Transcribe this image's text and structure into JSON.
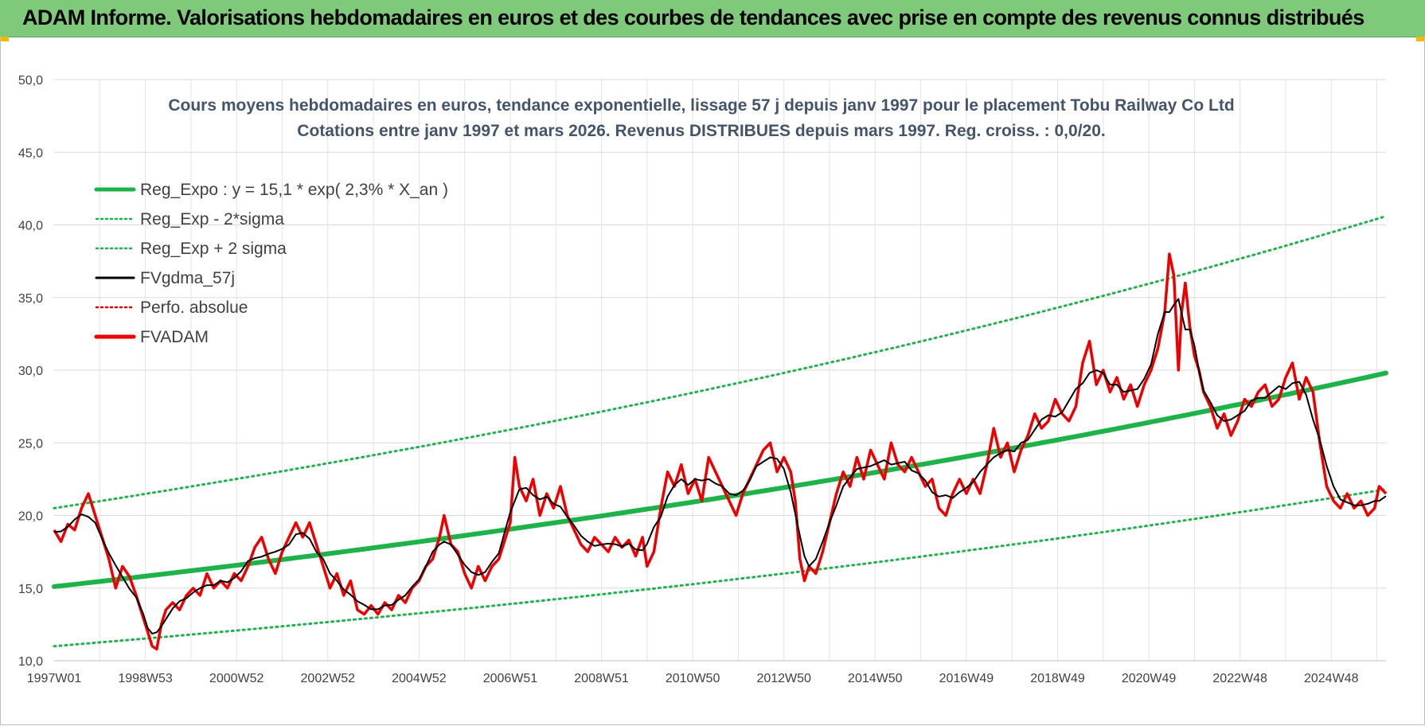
{
  "banner": {
    "title": "ADAM Informe. Valorisations hebdomadaires en euros et des courbes de tendances avec prise en compte des revenus connus distribués"
  },
  "chart_data": {
    "type": "line",
    "title_line1": "Cours moyens hebdomadaires en euros, tendance exponentielle, lissage 57 j depuis janv 1997  pour le  placement Tobu Railway Co Ltd",
    "title_line2": "Cotations entre janv 1997 et mars 2026. Revenus DISTRIBUES depuis mars 1997.  Reg. croiss. : 0,0/20.",
    "ylim": [
      10,
      50
    ],
    "xlim": [
      1997.0,
      2026.2
    ],
    "y_ticks": [
      "10,0",
      "15,0",
      "20,0",
      "25,0",
      "30,0",
      "35,0",
      "40,0",
      "45,0",
      "50,0"
    ],
    "x_tick_labels": [
      "1997W01",
      "1998W53",
      "2000W52",
      "2002W52",
      "2004W52",
      "2006W51",
      "2008W51",
      "2010W50",
      "2012W50",
      "2014W50",
      "2016W49",
      "2018W49",
      "2020W49",
      "2022W48",
      "2024W48"
    ],
    "x_tick_years": [
      1997.0,
      1999.0,
      2001.0,
      2003.0,
      2005.0,
      2007.0,
      2009.0,
      2011.0,
      2013.0,
      2015.0,
      2017.0,
      2019.0,
      2021.0,
      2023.0,
      2025.0
    ],
    "legend": [
      {
        "name": "Reg_Expo : y = 15,1 * exp( 2,3% *  X_an )",
        "color": "#1db34a",
        "style": "solid-thick"
      },
      {
        "name": "Reg_Exp - 2*sigma",
        "color": "#1db34a",
        "style": "dotted"
      },
      {
        "name": "Reg_Exp + 2 sigma",
        "color": "#1db34a",
        "style": "dotted"
      },
      {
        "name": "FVgdma_57j",
        "color": "#000000",
        "style": "solid"
      },
      {
        "name": "Perfo. absolue",
        "color": "#e00000",
        "style": "dotted"
      },
      {
        "name": "FVADAM",
        "color": "#ee0000",
        "style": "solid-thick"
      }
    ],
    "series": [
      {
        "name": "Reg_Expo",
        "points": [
          [
            1997.0,
            15.1
          ],
          [
            2026.2,
            29.8
          ]
        ]
      },
      {
        "name": "Reg_Exp - 2*sigma",
        "points": [
          [
            1997.0,
            11.0
          ],
          [
            2026.2,
            21.8
          ]
        ]
      },
      {
        "name": "Reg_Exp + 2 sigma",
        "points": [
          [
            1997.0,
            20.5
          ],
          [
            2026.2,
            40.6
          ]
        ]
      },
      {
        "name": "FVADAM",
        "points": [
          [
            1997.0,
            19.0
          ],
          [
            1997.15,
            18.2
          ],
          [
            1997.3,
            19.4
          ],
          [
            1997.45,
            19.0
          ],
          [
            1997.6,
            20.5
          ],
          [
            1997.75,
            21.5
          ],
          [
            1997.9,
            20.0
          ],
          [
            1998.05,
            18.5
          ],
          [
            1998.2,
            17.0
          ],
          [
            1998.35,
            15.0
          ],
          [
            1998.5,
            16.5
          ],
          [
            1998.65,
            15.8
          ],
          [
            1998.8,
            14.5
          ],
          [
            1998.95,
            13.0
          ],
          [
            1999.05,
            12.0
          ],
          [
            1999.15,
            11.0
          ],
          [
            1999.25,
            10.8
          ],
          [
            1999.35,
            12.5
          ],
          [
            1999.45,
            13.5
          ],
          [
            1999.6,
            14.0
          ],
          [
            1999.75,
            13.5
          ],
          [
            1999.9,
            14.5
          ],
          [
            2000.05,
            15.0
          ],
          [
            2000.2,
            14.5
          ],
          [
            2000.35,
            16.0
          ],
          [
            2000.5,
            15.0
          ],
          [
            2000.65,
            15.5
          ],
          [
            2000.8,
            15.0
          ],
          [
            2000.95,
            16.0
          ],
          [
            2001.1,
            15.5
          ],
          [
            2001.25,
            16.5
          ],
          [
            2001.4,
            17.8
          ],
          [
            2001.55,
            18.5
          ],
          [
            2001.7,
            17.0
          ],
          [
            2001.85,
            16.0
          ],
          [
            2002.0,
            17.5
          ],
          [
            2002.15,
            18.5
          ],
          [
            2002.3,
            19.5
          ],
          [
            2002.45,
            18.5
          ],
          [
            2002.6,
            19.5
          ],
          [
            2002.75,
            18.0
          ],
          [
            2002.9,
            16.5
          ],
          [
            2003.05,
            15.0
          ],
          [
            2003.2,
            16.0
          ],
          [
            2003.35,
            14.5
          ],
          [
            2003.5,
            15.5
          ],
          [
            2003.65,
            13.5
          ],
          [
            2003.8,
            13.2
          ],
          [
            2003.95,
            13.8
          ],
          [
            2004.1,
            13.2
          ],
          [
            2004.25,
            14.0
          ],
          [
            2004.4,
            13.5
          ],
          [
            2004.55,
            14.5
          ],
          [
            2004.7,
            14.0
          ],
          [
            2004.85,
            15.0
          ],
          [
            2005.0,
            15.5
          ],
          [
            2005.15,
            16.5
          ],
          [
            2005.3,
            17.0
          ],
          [
            2005.45,
            18.5
          ],
          [
            2005.55,
            20.0
          ],
          [
            2005.7,
            18.0
          ],
          [
            2005.85,
            17.5
          ],
          [
            2006.0,
            16.0
          ],
          [
            2006.15,
            15.0
          ],
          [
            2006.3,
            16.5
          ],
          [
            2006.45,
            15.5
          ],
          [
            2006.6,
            16.5
          ],
          [
            2006.75,
            17.0
          ],
          [
            2006.9,
            18.5
          ],
          [
            2007.0,
            19.5
          ],
          [
            2007.1,
            24.0
          ],
          [
            2007.2,
            22.0
          ],
          [
            2007.35,
            21.0
          ],
          [
            2007.5,
            22.5
          ],
          [
            2007.65,
            20.0
          ],
          [
            2007.8,
            21.5
          ],
          [
            2007.95,
            20.5
          ],
          [
            2008.1,
            22.0
          ],
          [
            2008.25,
            20.0
          ],
          [
            2008.4,
            19.0
          ],
          [
            2008.55,
            18.0
          ],
          [
            2008.7,
            17.5
          ],
          [
            2008.85,
            18.5
          ],
          [
            2009.0,
            18.0
          ],
          [
            2009.15,
            17.5
          ],
          [
            2009.3,
            18.5
          ],
          [
            2009.45,
            17.8
          ],
          [
            2009.6,
            18.3
          ],
          [
            2009.75,
            17.2
          ],
          [
            2009.9,
            18.5
          ],
          [
            2010.0,
            16.5
          ],
          [
            2010.15,
            17.5
          ],
          [
            2010.3,
            20.5
          ],
          [
            2010.45,
            23.0
          ],
          [
            2010.6,
            22.0
          ],
          [
            2010.75,
            23.5
          ],
          [
            2010.9,
            21.5
          ],
          [
            2011.05,
            22.5
          ],
          [
            2011.2,
            21.0
          ],
          [
            2011.35,
            24.0
          ],
          [
            2011.5,
            23.0
          ],
          [
            2011.65,
            22.0
          ],
          [
            2011.8,
            21.0
          ],
          [
            2011.95,
            20.0
          ],
          [
            2012.1,
            21.5
          ],
          [
            2012.25,
            22.5
          ],
          [
            2012.4,
            23.5
          ],
          [
            2012.55,
            24.5
          ],
          [
            2012.7,
            25.0
          ],
          [
            2012.85,
            23.0
          ],
          [
            2013.0,
            24.0
          ],
          [
            2013.15,
            23.0
          ],
          [
            2013.25,
            21.0
          ],
          [
            2013.35,
            17.0
          ],
          [
            2013.45,
            15.5
          ],
          [
            2013.55,
            16.5
          ],
          [
            2013.7,
            16.0
          ],
          [
            2013.85,
            17.5
          ],
          [
            2014.0,
            19.5
          ],
          [
            2014.15,
            21.5
          ],
          [
            2014.3,
            23.0
          ],
          [
            2014.45,
            22.0
          ],
          [
            2014.6,
            24.0
          ],
          [
            2014.75,
            22.5
          ],
          [
            2014.9,
            24.5
          ],
          [
            2015.05,
            23.5
          ],
          [
            2015.2,
            22.5
          ],
          [
            2015.35,
            25.0
          ],
          [
            2015.5,
            23.5
          ],
          [
            2015.65,
            23.0
          ],
          [
            2015.8,
            24.0
          ],
          [
            2015.95,
            23.0
          ],
          [
            2016.1,
            22.0
          ],
          [
            2016.25,
            22.5
          ],
          [
            2016.4,
            20.5
          ],
          [
            2016.55,
            20.0
          ],
          [
            2016.7,
            21.5
          ],
          [
            2016.85,
            22.5
          ],
          [
            2017.0,
            21.5
          ],
          [
            2017.15,
            22.5
          ],
          [
            2017.3,
            21.5
          ],
          [
            2017.45,
            23.5
          ],
          [
            2017.6,
            26.0
          ],
          [
            2017.75,
            24.0
          ],
          [
            2017.9,
            25.0
          ],
          [
            2018.05,
            23.0
          ],
          [
            2018.2,
            24.5
          ],
          [
            2018.35,
            25.5
          ],
          [
            2018.5,
            27.0
          ],
          [
            2018.65,
            26.0
          ],
          [
            2018.8,
            26.5
          ],
          [
            2018.95,
            28.0
          ],
          [
            2019.1,
            27.0
          ],
          [
            2019.25,
            26.5
          ],
          [
            2019.4,
            27.5
          ],
          [
            2019.55,
            30.5
          ],
          [
            2019.7,
            32.0
          ],
          [
            2019.85,
            29.0
          ],
          [
            2020.0,
            30.0
          ],
          [
            2020.15,
            28.5
          ],
          [
            2020.3,
            29.5
          ],
          [
            2020.45,
            28.0
          ],
          [
            2020.6,
            29.0
          ],
          [
            2020.75,
            27.5
          ],
          [
            2020.9,
            29.0
          ],
          [
            2021.05,
            30.0
          ],
          [
            2021.2,
            31.5
          ],
          [
            2021.35,
            34.0
          ],
          [
            2021.45,
            38.0
          ],
          [
            2021.55,
            36.5
          ],
          [
            2021.65,
            30.0
          ],
          [
            2021.72,
            34.0
          ],
          [
            2021.8,
            36.0
          ],
          [
            2021.9,
            33.0
          ],
          [
            2022.0,
            31.0
          ],
          [
            2022.1,
            30.0
          ],
          [
            2022.2,
            28.5
          ],
          [
            2022.35,
            27.5
          ],
          [
            2022.5,
            26.0
          ],
          [
            2022.65,
            27.0
          ],
          [
            2022.8,
            25.5
          ],
          [
            2022.95,
            26.5
          ],
          [
            2023.1,
            28.0
          ],
          [
            2023.25,
            27.5
          ],
          [
            2023.4,
            28.5
          ],
          [
            2023.55,
            29.0
          ],
          [
            2023.7,
            27.5
          ],
          [
            2023.85,
            28.0
          ],
          [
            2024.0,
            29.5
          ],
          [
            2024.15,
            30.5
          ],
          [
            2024.3,
            28.0
          ],
          [
            2024.45,
            29.5
          ],
          [
            2024.6,
            28.5
          ],
          [
            2024.75,
            25.0
          ],
          [
            2024.9,
            22.0
          ],
          [
            2025.05,
            21.0
          ],
          [
            2025.2,
            20.5
          ],
          [
            2025.35,
            21.5
          ],
          [
            2025.5,
            20.5
          ],
          [
            2025.65,
            21.0
          ],
          [
            2025.8,
            20.0
          ],
          [
            2025.95,
            20.5
          ],
          [
            2026.05,
            22.0
          ],
          [
            2026.2,
            21.5
          ]
        ]
      }
    ]
  }
}
